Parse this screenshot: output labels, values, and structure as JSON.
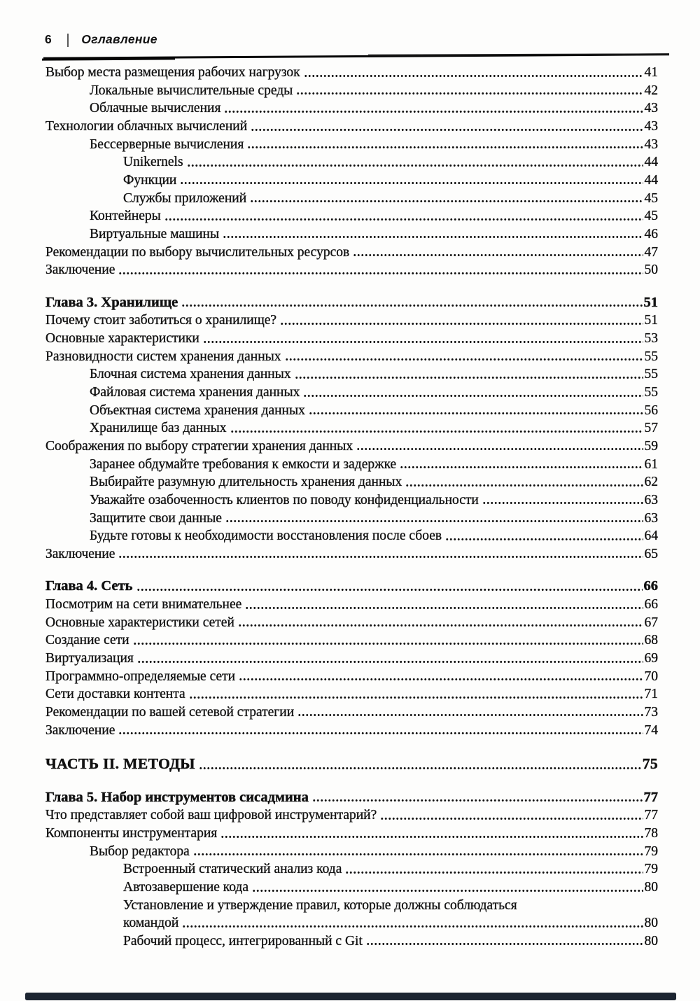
{
  "page_header": {
    "page_number": "6",
    "separator": "|",
    "title": "Оглавление"
  },
  "colors": {
    "text": "#121212",
    "rule": "#050505",
    "bottom_bar": "#1c2531",
    "background": "#fdfdfc"
  },
  "toc": {
    "entries": [
      {
        "level": 0,
        "kind": "item",
        "title": "Выбор места размещения рабочих нагрузок",
        "page": "41",
        "dots": true,
        "gap": false
      },
      {
        "level": 1,
        "kind": "item",
        "title": "Локальные вычислительные среды",
        "page": "42",
        "dots": true,
        "gap": false
      },
      {
        "level": 1,
        "kind": "item",
        "title": "Облачные вычисления",
        "page": "43",
        "dots": true,
        "gap": false
      },
      {
        "level": 0,
        "kind": "item",
        "title": "Технологии облачных вычислений",
        "page": "43",
        "dots": true,
        "gap": false
      },
      {
        "level": 1,
        "kind": "item",
        "title": "Бессерверные вычисления",
        "page": "43",
        "dots": true,
        "gap": false
      },
      {
        "level": 2,
        "kind": "item",
        "title": "Unikernels",
        "page": "44",
        "dots": true,
        "gap": false
      },
      {
        "level": 2,
        "kind": "item",
        "title": "Функции",
        "page": "44",
        "dots": true,
        "gap": false
      },
      {
        "level": 2,
        "kind": "item",
        "title": "Службы приложений",
        "page": "45",
        "dots": true,
        "gap": false
      },
      {
        "level": 1,
        "kind": "item",
        "title": "Контейнеры",
        "page": "45",
        "dots": true,
        "gap": false
      },
      {
        "level": 1,
        "kind": "item",
        "title": "Виртуальные машины",
        "page": "46",
        "dots": true,
        "gap": false
      },
      {
        "level": 0,
        "kind": "item",
        "title": "Рекомендации по выбору вычислительных ресурсов",
        "page": "47",
        "dots": true,
        "gap": false
      },
      {
        "level": 0,
        "kind": "item",
        "title": "Заключение",
        "page": "50",
        "dots": true,
        "gap": false
      },
      {
        "level": 0,
        "kind": "chapter",
        "title": "Глава 3. Хранилище",
        "page": "51",
        "dots": true,
        "gap": true
      },
      {
        "level": 0,
        "kind": "item",
        "title": "Почему стоит заботиться о хранилище?",
        "page": "51",
        "dots": true,
        "gap": false
      },
      {
        "level": 0,
        "kind": "item",
        "title": "Основные характеристики",
        "page": "53",
        "dots": true,
        "gap": false
      },
      {
        "level": 0,
        "kind": "item",
        "title": "Разновидности систем хранения данных",
        "page": "55",
        "dots": true,
        "gap": false
      },
      {
        "level": 1,
        "kind": "item",
        "title": "Блочная система хранения данных",
        "page": "55",
        "dots": true,
        "gap": false
      },
      {
        "level": 1,
        "kind": "item",
        "title": "Файловая система хранения данных",
        "page": "55",
        "dots": true,
        "gap": false
      },
      {
        "level": 1,
        "kind": "item",
        "title": "Объектная система хранения данных",
        "page": "56",
        "dots": true,
        "gap": false
      },
      {
        "level": 1,
        "kind": "item",
        "title": "Хранилище баз данных",
        "page": "57",
        "dots": true,
        "gap": false
      },
      {
        "level": 0,
        "kind": "item",
        "title": "Соображения по выбору стратегии хранения данных",
        "page": "59",
        "dots": true,
        "gap": false
      },
      {
        "level": 1,
        "kind": "item",
        "title": "Заранее обдумайте требования к емкости и задержке",
        "page": "61",
        "dots": true,
        "gap": false
      },
      {
        "level": 1,
        "kind": "item",
        "title": "Выбирайте разумную длительность хранения данных",
        "page": "62",
        "dots": true,
        "gap": false
      },
      {
        "level": 1,
        "kind": "item",
        "title": "Уважайте озабоченность клиентов по поводу конфиденциальности",
        "page": "63",
        "dots": true,
        "gap": false
      },
      {
        "level": 1,
        "kind": "item",
        "title": "Защитите свои данные",
        "page": "63",
        "dots": true,
        "gap": false
      },
      {
        "level": 1,
        "kind": "item",
        "title": "Будьте готовы к необходимости восстановления после сбоев",
        "page": "64",
        "dots": true,
        "gap": false
      },
      {
        "level": 0,
        "kind": "item",
        "title": "Заключение",
        "page": "65",
        "dots": true,
        "gap": false
      },
      {
        "level": 0,
        "kind": "chapter",
        "title": "Глава 4. Сеть",
        "page": "66",
        "dots": true,
        "gap": true
      },
      {
        "level": 0,
        "kind": "item",
        "title": "Посмотрим на сети внимательнее",
        "page": "66",
        "dots": true,
        "gap": false
      },
      {
        "level": 0,
        "kind": "item",
        "title": "Основные характеристики сетей",
        "page": "67",
        "dots": true,
        "gap": false
      },
      {
        "level": 0,
        "kind": "item",
        "title": "Создание сети",
        "page": "68",
        "dots": true,
        "gap": false
      },
      {
        "level": 0,
        "kind": "item",
        "title": "Виртуализация",
        "page": "69",
        "dots": true,
        "gap": false
      },
      {
        "level": 0,
        "kind": "item",
        "title": "Программно-определяемые сети",
        "page": "70",
        "dots": true,
        "gap": false
      },
      {
        "level": 0,
        "kind": "item",
        "title": "Сети доставки контента",
        "page": "71",
        "dots": true,
        "gap": false
      },
      {
        "level": 0,
        "kind": "item",
        "title": "Рекомендации по вашей сетевой стратегии",
        "page": "73",
        "dots": true,
        "gap": false
      },
      {
        "level": 0,
        "kind": "item",
        "title": "Заключение",
        "page": "74",
        "dots": true,
        "gap": false
      },
      {
        "level": 0,
        "kind": "part",
        "title": "ЧАСТЬ II. МЕТОДЫ",
        "page": "75",
        "dots": true,
        "gap": true
      },
      {
        "level": 0,
        "kind": "chapter",
        "title": "Глава 5. Набор инструментов сисадмина",
        "page": "77",
        "dots": true,
        "gap": true
      },
      {
        "level": 0,
        "kind": "item",
        "title": "Что представляет собой ваш цифровой инструментарий?",
        "page": "77",
        "dots": true,
        "gap": false
      },
      {
        "level": 0,
        "kind": "item",
        "title": "Компоненты инструментария",
        "page": "78",
        "dots": true,
        "gap": false
      },
      {
        "level": 1,
        "kind": "item",
        "title": "Выбор редактора",
        "page": "79",
        "dots": true,
        "gap": false
      },
      {
        "level": 2,
        "kind": "item",
        "title": "Встроенный статический анализ кода",
        "page": "79",
        "dots": true,
        "gap": false
      },
      {
        "level": 2,
        "kind": "item",
        "title": "Автозавершение кода",
        "page": "80",
        "dots": true,
        "gap": false
      },
      {
        "level": 2,
        "kind": "item",
        "title": "Установление и утверждение правил, которые должны соблюдаться",
        "page": "",
        "dots": false,
        "gap": false
      },
      {
        "level": 2,
        "kind": "item",
        "title": "командой",
        "page": "80",
        "dots": true,
        "gap": false
      },
      {
        "level": 2,
        "kind": "item",
        "title": "Рабочий процесс, интегрированный с Git",
        "page": "80",
        "dots": true,
        "gap": false
      }
    ]
  }
}
